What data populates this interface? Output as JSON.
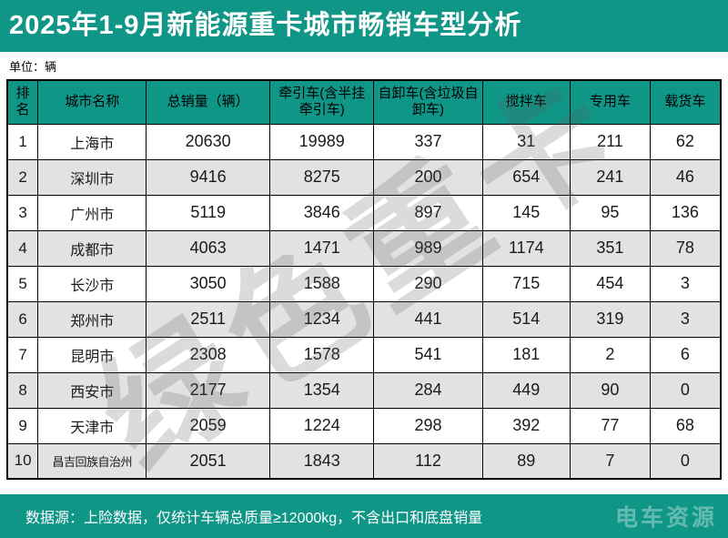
{
  "header": {
    "title": "2025年1-9月新能源重卡城市畅销车型分析"
  },
  "table": {
    "unit_note": "单位：辆",
    "columns": [
      "排名",
      "城市名称",
      "总销量（辆）",
      "牵引车(含半挂牵引车)",
      "自卸车(含垃圾自卸车)",
      "搅拌车",
      "专用车",
      "载货车"
    ],
    "rows": [
      [
        "1",
        "上海市",
        "20630",
        "19989",
        "337",
        "31",
        "211",
        "62"
      ],
      [
        "2",
        "深圳市",
        "9416",
        "8275",
        "200",
        "654",
        "241",
        "46"
      ],
      [
        "3",
        "广州市",
        "5119",
        "3846",
        "897",
        "145",
        "95",
        "136"
      ],
      [
        "4",
        "成都市",
        "4063",
        "1471",
        "989",
        "1174",
        "351",
        "78"
      ],
      [
        "5",
        "长沙市",
        "3050",
        "1588",
        "290",
        "715",
        "454",
        "3"
      ],
      [
        "6",
        "郑州市",
        "2511",
        "1234",
        "441",
        "514",
        "319",
        "3"
      ],
      [
        "7",
        "昆明市",
        "2308",
        "1578",
        "541",
        "181",
        "2",
        "6"
      ],
      [
        "8",
        "西安市",
        "2177",
        "1354",
        "284",
        "449",
        "90",
        "0"
      ],
      [
        "9",
        "天津市",
        "2059",
        "1224",
        "298",
        "392",
        "77",
        "68"
      ],
      [
        "10",
        "昌吉回族自治州",
        "2051",
        "1843",
        "112",
        "89",
        "7",
        "0"
      ]
    ]
  },
  "watermark": {
    "text": "绿色重卡"
  },
  "footer": {
    "note": "数据源：上险数据，仅统计车辆总质量≥12000kg，不含出口和底盘销量",
    "logo": "电车资源"
  },
  "colors": {
    "accent_teal": "#109687",
    "row_alt_gray": "#e2e2e2",
    "border_black": "#000000",
    "watermark_gray": "#c9c9c9"
  },
  "chart_data": {
    "type": "table",
    "title": "2025年1-9月新能源重卡城市畅销车型分析",
    "unit": "辆",
    "columns": [
      "排名",
      "城市名称",
      "总销量（辆）",
      "牵引车(含半挂牵引车)",
      "自卸车(含垃圾自卸车)",
      "搅拌车",
      "专用车",
      "载货车"
    ],
    "rows": [
      [
        1,
        "上海市",
        20630,
        19989,
        337,
        31,
        211,
        62
      ],
      [
        2,
        "深圳市",
        9416,
        8275,
        200,
        654,
        241,
        46
      ],
      [
        3,
        "广州市",
        5119,
        3846,
        897,
        145,
        95,
        136
      ],
      [
        4,
        "成都市",
        4063,
        1471,
        989,
        1174,
        351,
        78
      ],
      [
        5,
        "长沙市",
        3050,
        1588,
        290,
        715,
        454,
        3
      ],
      [
        6,
        "郑州市",
        2511,
        1234,
        441,
        514,
        319,
        3
      ],
      [
        7,
        "昆明市",
        2308,
        1578,
        541,
        181,
        2,
        6
      ],
      [
        8,
        "西安市",
        2177,
        1354,
        284,
        449,
        90,
        0
      ],
      [
        9,
        "天津市",
        2059,
        1224,
        298,
        392,
        77,
        68
      ],
      [
        10,
        "昌吉回族自治州",
        2051,
        1843,
        112,
        89,
        7,
        0
      ]
    ],
    "source_note": "数据源：上险数据，仅统计车辆总质量≥12000kg，不含出口和底盘销量"
  }
}
